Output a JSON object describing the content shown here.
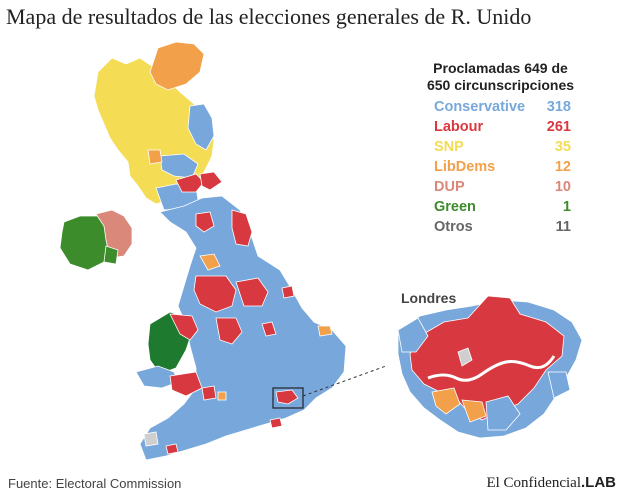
{
  "title": "Mapa de resultados de las elecciones generales de R. Unido",
  "legend": {
    "heading_line1": "Proclamadas 649 de",
    "heading_line2": "650 circunscripciones",
    "parties": [
      {
        "name": "Conservative",
        "seats": "318",
        "color": "#78a8db"
      },
      {
        "name": "Labour",
        "seats": "261",
        "color": "#d8383f"
      },
      {
        "name": "SNP",
        "seats": "35",
        "color": "#f4dc55"
      },
      {
        "name": "LibDems",
        "seats": "12",
        "color": "#f2a04a"
      },
      {
        "name": "DUP",
        "seats": "10",
        "color": "#d98879"
      },
      {
        "name": "Green",
        "seats": "1",
        "color": "#3d8c2c"
      },
      {
        "name": "Otros",
        "seats": "11",
        "color": "#666666"
      }
    ]
  },
  "inset": {
    "label": "Londres"
  },
  "colors": {
    "conservative": "#78a8db",
    "labour": "#d8383f",
    "snp": "#f4dc55",
    "libdem": "#f2a04a",
    "dup": "#d98879",
    "green_ni": "#3d8c2c",
    "plaid": "#1e7a2e",
    "speaker": "#cfcfcf",
    "boundary": "#ffffff"
  },
  "footer": {
    "source": "Fuente: Electoral Commission",
    "brand_serif": "El Confidencial",
    "brand_bold": ".LAB"
  }
}
